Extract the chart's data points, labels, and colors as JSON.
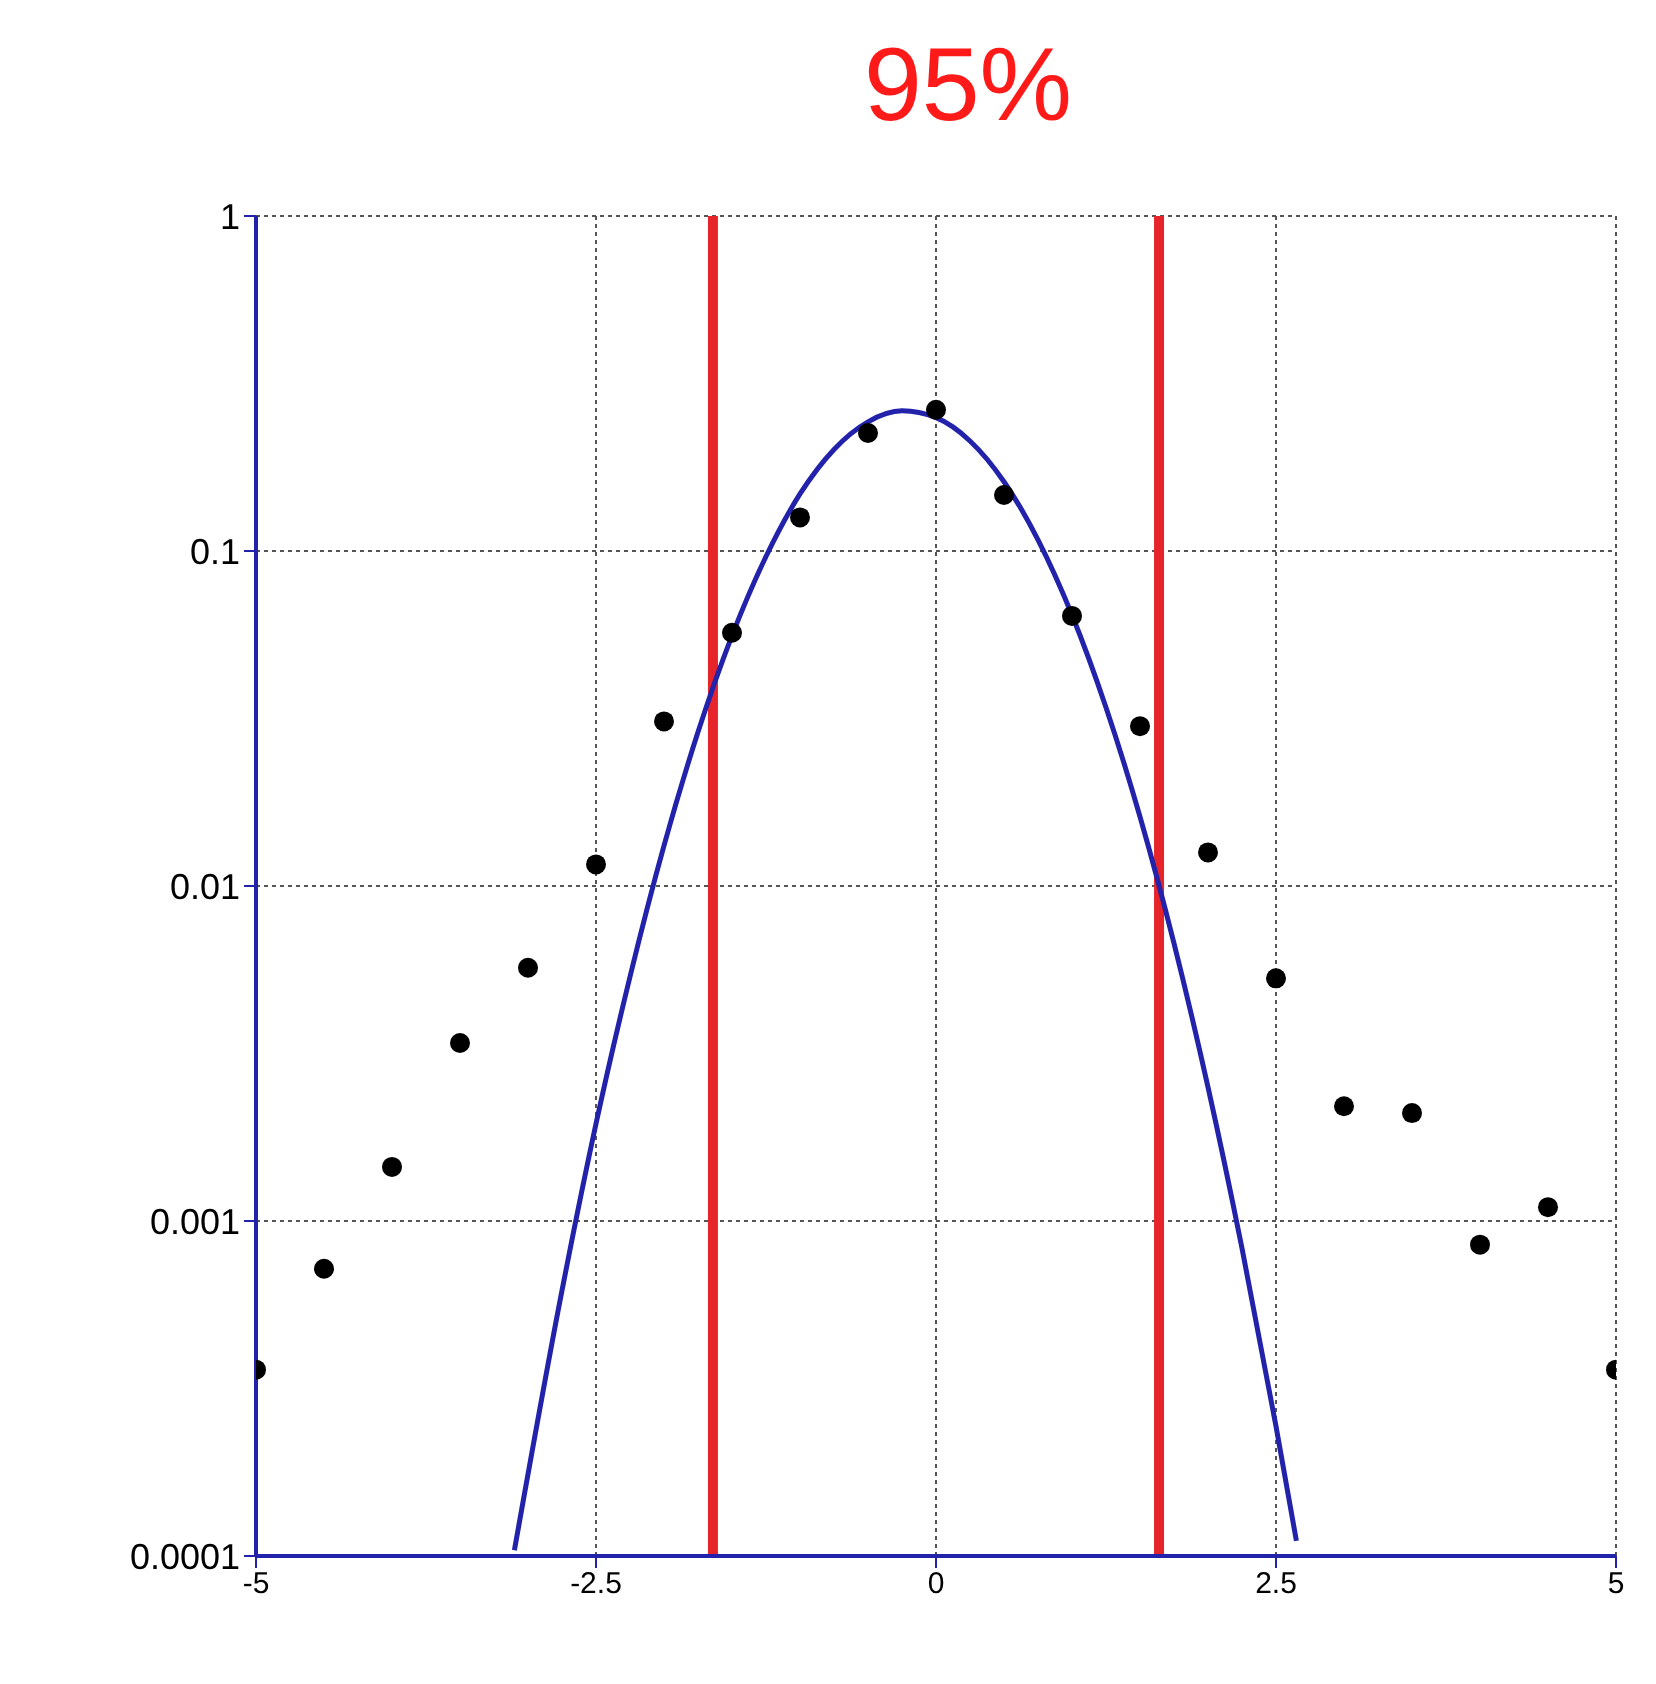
{
  "chart_data": {
    "type": "scatter",
    "title": "95%",
    "xlim": [
      -5,
      5
    ],
    "xticks": [
      -5,
      -2.5,
      0,
      2.5,
      5
    ],
    "ylim": [
      0.0001,
      1
    ],
    "yticks": [
      1,
      0.1,
      0.01,
      0.001,
      0.0001
    ],
    "log": "y",
    "grid": true,
    "series": [
      {
        "color": "#000000",
        "marker": "circle",
        "x": [
          -5,
          -4.5,
          -4,
          -3.5,
          -3,
          -2.5,
          -2,
          -1.5,
          -1,
          -0.5,
          0,
          0.5,
          1,
          1.5,
          2,
          2.5,
          3,
          3.5,
          4,
          4.5,
          5
        ],
        "values": [
          0.00036,
          0.00072,
          0.00145,
          0.0034,
          0.0057,
          0.0116,
          0.031,
          0.057,
          0.126,
          0.225,
          0.264,
          0.147,
          0.064,
          0.03,
          0.0126,
          0.0053,
          0.0022,
          0.0021,
          0.00085,
          0.0011,
          0.00036
        ]
      },
      {
        "type": "line",
        "color": "#2222aa",
        "x": [
          -3.1,
          -2.75,
          -2.5,
          -2.25,
          -2,
          -1.75,
          -1.5,
          -1.25,
          -1,
          -0.75,
          -0.5,
          -0.25,
          0,
          0.25,
          0.5,
          0.75,
          1,
          1.25,
          1.5,
          1.75,
          2,
          2.25,
          2.5,
          2.65
        ],
        "values": [
          0.000104,
          0.00062,
          0.00195,
          0.00536,
          0.0132,
          0.0288,
          0.0559,
          0.0963,
          0.148,
          0.201,
          0.243,
          0.262,
          0.25,
          0.213,
          0.161,
          0.108,
          0.0644,
          0.0341,
          0.0161,
          0.00674,
          0.00251,
          0.000829,
          0.000244,
          0.000111
        ]
      }
    ],
    "ref_lines": [
      {
        "axis": "x",
        "value": -1.64,
        "color": "#e8242b"
      },
      {
        "axis": "x",
        "value": 1.64,
        "color": "#e8242b"
      }
    ]
  }
}
